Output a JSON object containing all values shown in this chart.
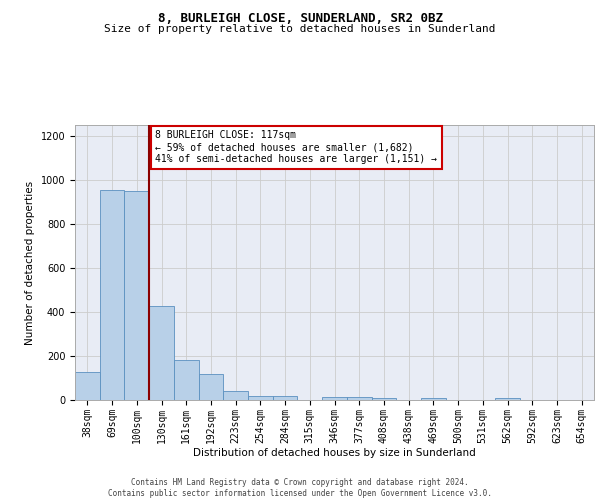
{
  "title1": "8, BURLEIGH CLOSE, SUNDERLAND, SR2 0BZ",
  "title2": "Size of property relative to detached houses in Sunderland",
  "xlabel": "Distribution of detached houses by size in Sunderland",
  "ylabel": "Number of detached properties",
  "categories": [
    "38sqm",
    "69sqm",
    "100sqm",
    "130sqm",
    "161sqm",
    "192sqm",
    "223sqm",
    "254sqm",
    "284sqm",
    "315sqm",
    "346sqm",
    "377sqm",
    "408sqm",
    "438sqm",
    "469sqm",
    "500sqm",
    "531sqm",
    "562sqm",
    "592sqm",
    "623sqm",
    "654sqm"
  ],
  "values": [
    127,
    955,
    948,
    428,
    183,
    120,
    42,
    20,
    20,
    0,
    15,
    15,
    10,
    0,
    10,
    0,
    0,
    10,
    0,
    0,
    0
  ],
  "bar_color": "#b8d0e8",
  "bar_edge_color": "#5a90c0",
  "grid_color": "#cccccc",
  "bg_color": "#e8ecf5",
  "vline_x": 2.5,
  "vline_color": "#8b0000",
  "annotation_text": "8 BURLEIGH CLOSE: 117sqm\n← 59% of detached houses are smaller (1,682)\n41% of semi-detached houses are larger (1,151) →",
  "annotation_box_color": "#ffffff",
  "annotation_box_edge": "#cc0000",
  "footer1": "Contains HM Land Registry data © Crown copyright and database right 2024.",
  "footer2": "Contains public sector information licensed under the Open Government Licence v3.0.",
  "ylim": [
    0,
    1250
  ],
  "yticks": [
    0,
    200,
    400,
    600,
    800,
    1000,
    1200
  ],
  "title1_fontsize": 9.0,
  "title2_fontsize": 8.0,
  "ylabel_fontsize": 7.5,
  "xlabel_fontsize": 7.5,
  "tick_fontsize": 7.0,
  "annot_fontsize": 7.0,
  "footer_fontsize": 5.5
}
